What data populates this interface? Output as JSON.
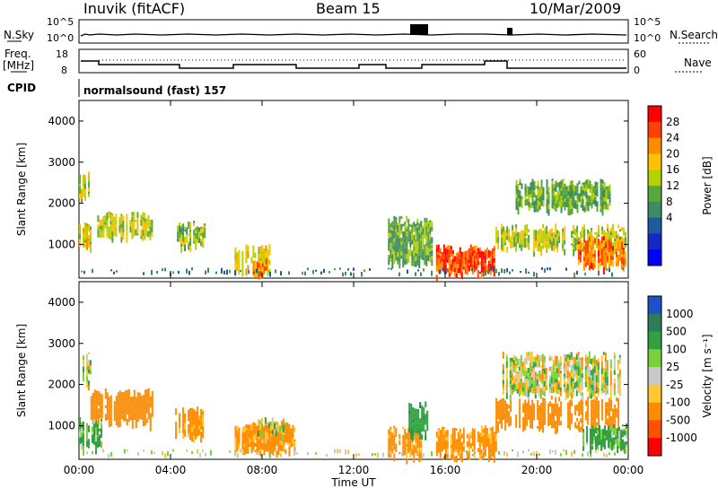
{
  "header": {
    "station": "Inuvik (fitACF)",
    "beam": "Beam 15",
    "date": "10/Mar/2009"
  },
  "top_panels": {
    "nsky_label": "N.Sky",
    "nsky_ticks": [
      "10^5",
      "10^0"
    ],
    "nsearch_label": "N.Search",
    "nsearch_ticks": [
      "10^5",
      "10^0"
    ],
    "freq_label_1": "Freq.",
    "freq_label_2": "[MHz]",
    "freq_ticks": [
      "18",
      "8"
    ],
    "nave_label": "Nave",
    "nave_ticks": [
      "60",
      "0"
    ],
    "cpid_label": "CPID",
    "cpid_text": "normalsound (fast) 157"
  },
  "chart_data": [
    {
      "type": "heatmap",
      "name": "power",
      "ylabel": "Slant Range [km]",
      "ylim": [
        180,
        4500
      ],
      "yticks": [
        "1000",
        "2000",
        "3000",
        "4000"
      ],
      "x_ticks": [
        "00:00",
        "04:00",
        "08:00",
        "12:00",
        "16:00",
        "20:00",
        "00:00"
      ],
      "colorbar_label": "Power [dB]",
      "colorbar_ticks": [
        "28",
        "24",
        "20",
        "16",
        "12",
        "8",
        "4"
      ],
      "colors": [
        "#ff0000",
        "#ff4000",
        "#ff8c00",
        "#ffc200",
        "#b4d200",
        "#5aa83c",
        "#3c8c64",
        "#1e5aa0",
        "#1428c8",
        "#0000ff"
      ],
      "blobs": [
        {
          "t0": 0.0,
          "t1": 0.6,
          "r0": 900,
          "r1": 1500,
          "v": 20
        },
        {
          "t0": 0.0,
          "t1": 0.4,
          "r0": 2100,
          "r1": 2700,
          "v": 18
        },
        {
          "t0": 0.8,
          "t1": 3.2,
          "r0": 1200,
          "r1": 1700,
          "v": 18
        },
        {
          "t0": 4.2,
          "t1": 5.5,
          "r0": 1000,
          "r1": 1500,
          "v": 16
        },
        {
          "t0": 6.8,
          "t1": 8.4,
          "r0": 300,
          "r1": 900,
          "v": 20
        },
        {
          "t0": 7.6,
          "t1": 8.2,
          "r0": 300,
          "r1": 600,
          "v": 26
        },
        {
          "t0": 13.5,
          "t1": 15.4,
          "r0": 600,
          "r1": 1600,
          "v": 14
        },
        {
          "t0": 15.6,
          "t1": 18.2,
          "r0": 300,
          "r1": 900,
          "v": 28
        },
        {
          "t0": 18.2,
          "t1": 23.9,
          "r0": 900,
          "r1": 1400,
          "v": 18
        },
        {
          "t0": 21.8,
          "t1": 23.9,
          "r0": 500,
          "r1": 1100,
          "v": 26
        },
        {
          "t0": 19.0,
          "t1": 23.2,
          "r0": 1900,
          "r1": 2500,
          "v": 14
        }
      ]
    },
    {
      "type": "heatmap",
      "name": "velocity",
      "ylabel": "Slant Range [km]",
      "ylim": [
        180,
        4500
      ],
      "yticks": [
        "1000",
        "2000",
        "3000",
        "4000"
      ],
      "x_ticks": [
        "00:00",
        "04:00",
        "08:00",
        "12:00",
        "16:00",
        "20:00",
        "00:00"
      ],
      "xlabel": "Time UT",
      "colorbar_label": "Velocity [m s⁻¹]",
      "colorbar_ticks": [
        "1000",
        "500",
        "100",
        "25",
        "-25",
        "-100",
        "-500",
        "-1000"
      ],
      "colors": [
        "#1e50c8",
        "#2d7d5a",
        "#32a040",
        "#78d23c",
        "#c8c8c8",
        "#ffc832",
        "#ff8c00",
        "#ff5000",
        "#ff0000"
      ],
      "blobs": [
        {
          "t0": 0.0,
          "t1": 0.5,
          "r0": 2000,
          "r1": 2700,
          "v": 0
        },
        {
          "t0": 0.5,
          "t1": 3.2,
          "r0": 1100,
          "r1": 1800,
          "v": -250
        },
        {
          "t0": 0.0,
          "t1": 1.0,
          "r0": 500,
          "r1": 1100,
          "v": 150
        },
        {
          "t0": 4.2,
          "t1": 5.4,
          "r0": 700,
          "r1": 1400,
          "v": -200
        },
        {
          "t0": 6.8,
          "t1": 9.5,
          "r0": 400,
          "r1": 1000,
          "v": -200
        },
        {
          "t0": 7.8,
          "t1": 9.0,
          "r0": 800,
          "r1": 1100,
          "v": 0
        },
        {
          "t0": 13.5,
          "t1": 15.2,
          "r0": 300,
          "r1": 900,
          "v": -200
        },
        {
          "t0": 14.4,
          "t1": 15.2,
          "r0": 800,
          "r1": 1500,
          "v": 400
        },
        {
          "t0": 15.6,
          "t1": 18.2,
          "r0": 300,
          "r1": 900,
          "v": -200
        },
        {
          "t0": 18.2,
          "t1": 23.6,
          "r0": 1000,
          "r1": 1600,
          "v": -250
        },
        {
          "t0": 22.0,
          "t1": 23.9,
          "r0": 500,
          "r1": 1000,
          "v": 150
        },
        {
          "t0": 18.5,
          "t1": 23.6,
          "r0": 1800,
          "r1": 2700,
          "v": 0
        }
      ]
    }
  ]
}
